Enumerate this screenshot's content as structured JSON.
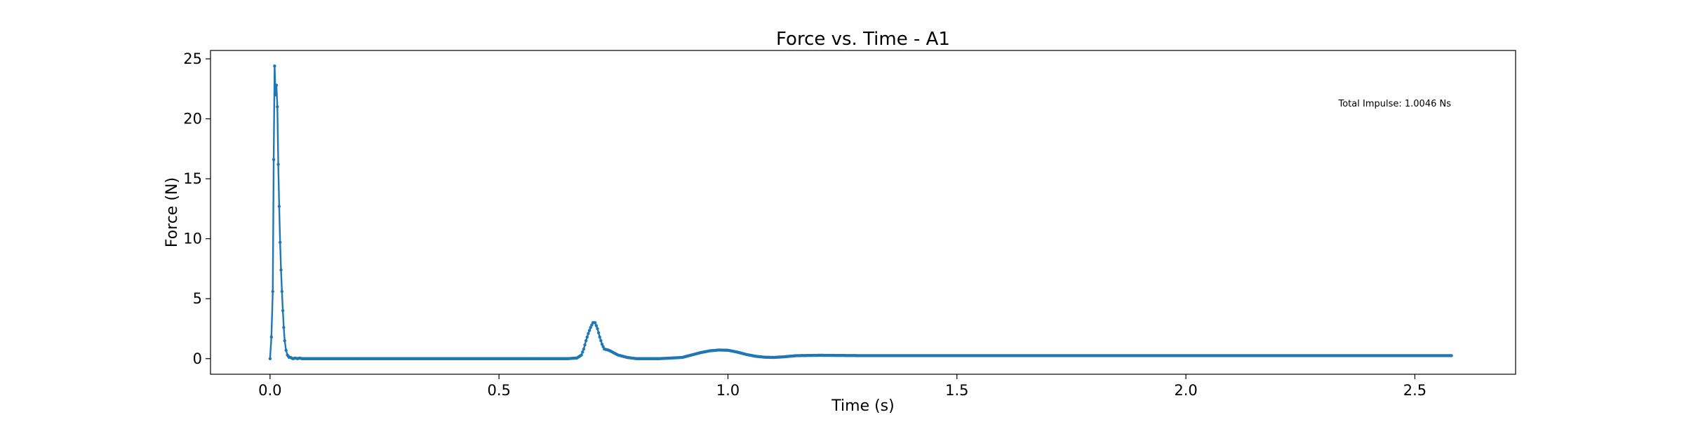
{
  "chart_data": {
    "type": "line",
    "title": "Force vs. Time - A1",
    "xlabel": "Time (s)",
    "ylabel": "Force (N)",
    "xlim": [
      -0.13,
      2.72
    ],
    "ylim": [
      -1.3,
      25.7
    ],
    "x_ticks": [
      0.0,
      0.5,
      1.0,
      1.5,
      2.0,
      2.5
    ],
    "x_tick_labels": [
      "0.0",
      "0.5",
      "1.0",
      "1.5",
      "2.0",
      "2.5"
    ],
    "y_ticks": [
      0,
      5,
      10,
      15,
      20,
      25
    ],
    "y_tick_labels": [
      "0",
      "5",
      "10",
      "15",
      "20",
      "25"
    ],
    "grid": false,
    "annotation": "Total Impulse: 1.0046 Ns",
    "line_color": "#1f77b4",
    "marker": "dot",
    "series": [
      {
        "x": [
          0.0,
          0.003,
          0.006,
          0.008,
          0.01,
          0.012,
          0.014,
          0.016,
          0.018,
          0.02,
          0.022,
          0.024,
          0.026,
          0.028,
          0.03,
          0.032,
          0.035,
          0.038,
          0.042,
          0.045,
          0.05,
          0.055,
          0.06,
          0.065,
          0.07,
          0.08,
          0.09,
          0.1,
          0.12,
          0.15,
          0.2,
          0.3,
          0.4,
          0.5,
          0.6,
          0.65,
          0.67,
          0.68,
          0.685,
          0.69,
          0.695,
          0.7,
          0.705,
          0.71,
          0.715,
          0.72,
          0.725,
          0.73,
          0.74,
          0.75,
          0.76,
          0.78,
          0.8,
          0.85,
          0.9,
          0.92,
          0.94,
          0.96,
          0.98,
          1.0,
          1.02,
          1.04,
          1.06,
          1.08,
          1.1,
          1.12,
          1.15,
          1.2,
          1.3,
          1.5,
          1.7,
          1.9,
          2.1,
          2.3,
          2.5,
          2.58
        ],
        "y": [
          0.0,
          1.8,
          5.6,
          16.6,
          24.4,
          22.0,
          22.8,
          21.0,
          16.2,
          12.7,
          9.7,
          7.4,
          5.6,
          4.0,
          2.6,
          1.5,
          0.7,
          0.3,
          0.1,
          0.1,
          0.0,
          0.05,
          0.0,
          0.05,
          0.0,
          0.0,
          0.0,
          0.0,
          0.0,
          0.0,
          0.0,
          0.0,
          0.0,
          0.0,
          0.0,
          0.0,
          0.05,
          0.3,
          0.8,
          1.5,
          2.1,
          2.6,
          3.0,
          3.0,
          2.5,
          1.8,
          1.2,
          0.8,
          0.7,
          0.5,
          0.3,
          0.1,
          0.0,
          0.0,
          0.1,
          0.3,
          0.5,
          0.65,
          0.72,
          0.7,
          0.55,
          0.35,
          0.2,
          0.12,
          0.1,
          0.15,
          0.25,
          0.28,
          0.25,
          0.25,
          0.25,
          0.25,
          0.25,
          0.25,
          0.25,
          0.25
        ]
      }
    ]
  }
}
